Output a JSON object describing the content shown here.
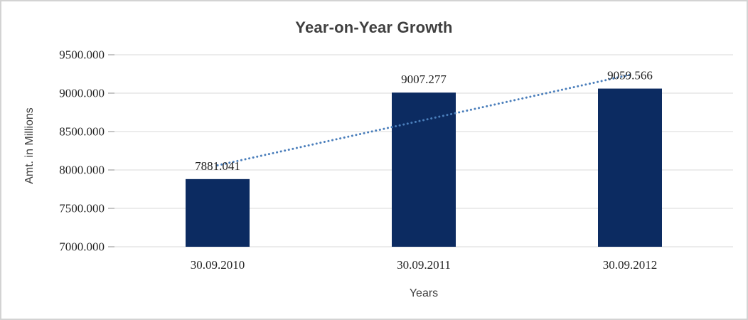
{
  "window": {
    "background": "#ffffff",
    "border_color": "#d3d3d3"
  },
  "chart_data": {
    "type": "bar",
    "title": "Year-on-Year Growth",
    "xlabel": "Years",
    "ylabel": "Amt. in Millions",
    "categories": [
      "30.09.2010",
      "30.09.2011",
      "30.09.2012"
    ],
    "values": [
      7881.041,
      9007.277,
      9059.566
    ],
    "data_labels": [
      "7881.041",
      "9007.277",
      "9059.566"
    ],
    "y_ticks": [
      "9500.000",
      "9000.000",
      "8500.000",
      "8000.000",
      "7500.000",
      "7000.000"
    ],
    "ylim": [
      7000,
      9500
    ],
    "y_step": 500,
    "grid": true,
    "legend_position": "none",
    "trendline": {
      "type": "linear",
      "style": "dotted",
      "fitted_values": [
        8060.03,
        8649.29,
        9238.56
      ]
    },
    "colors": {
      "bar": "#0c2b61",
      "trendline": "#4a7ebb",
      "gridline": "#d9d9d9",
      "tick_mark": "#8c8c8c",
      "title_text": "#3f3f3f",
      "axis_text": "#262626",
      "data_label_text": "#1f1f1f",
      "axis_title_text": "#404040"
    }
  }
}
